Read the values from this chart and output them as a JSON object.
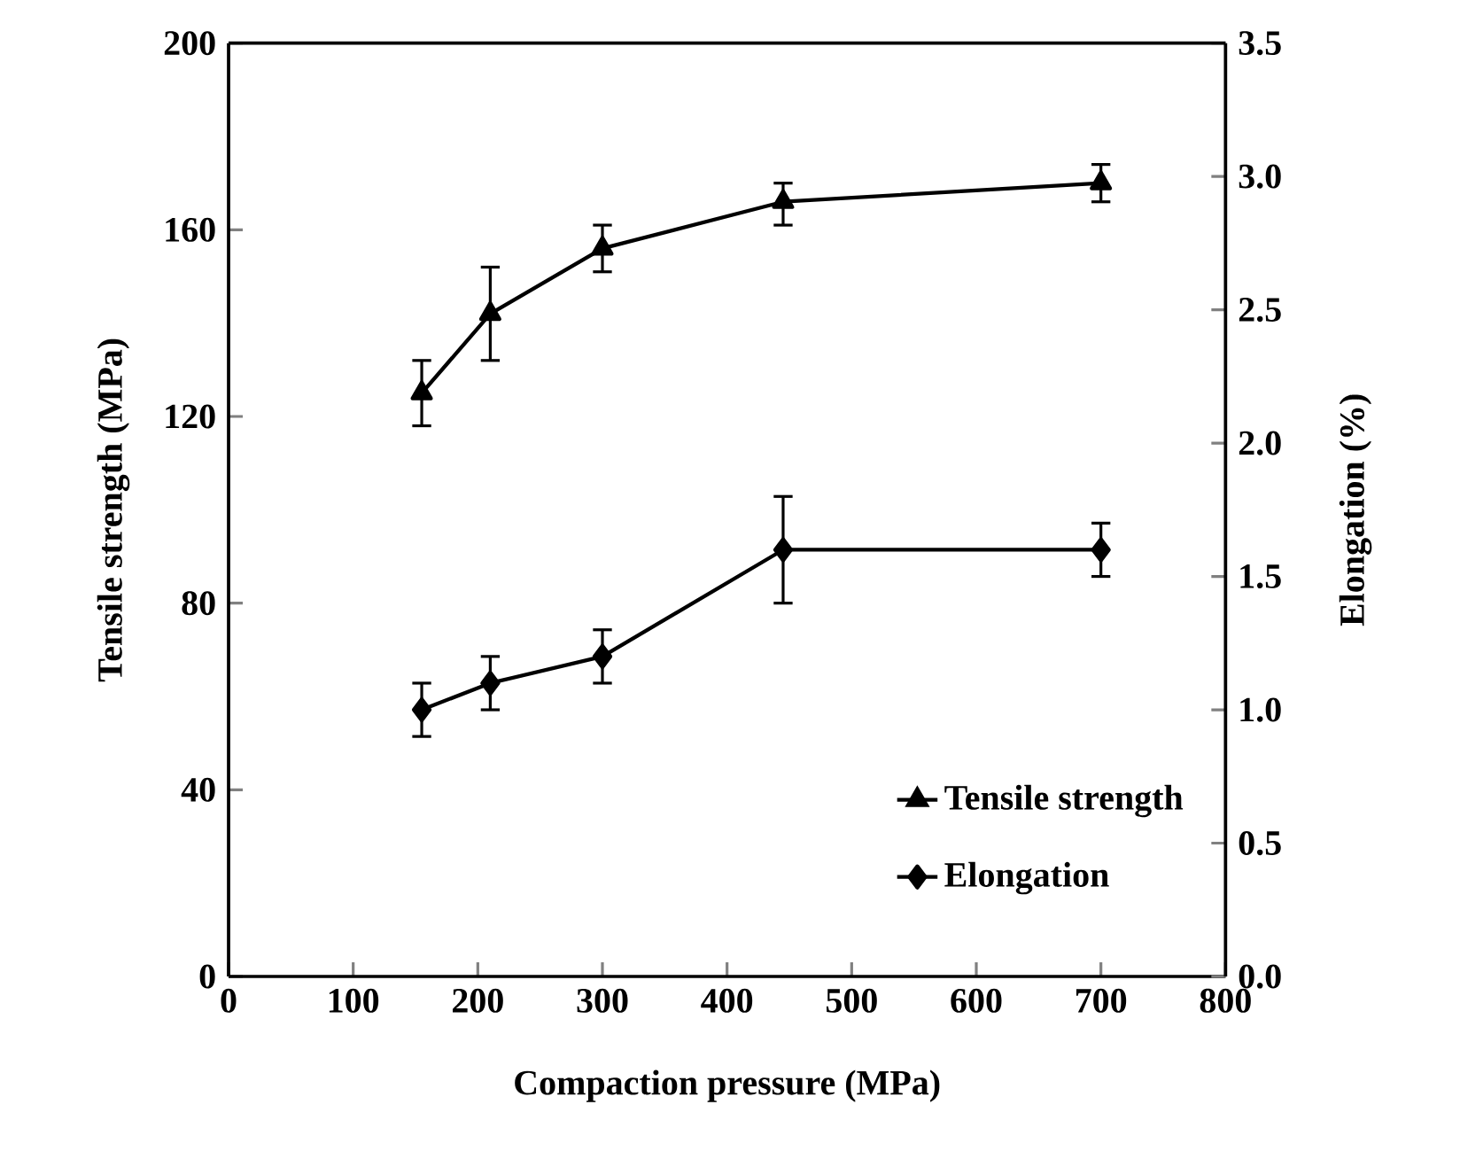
{
  "chart_data": {
    "type": "line",
    "xlabel": "Compaction pressure (MPa)",
    "ylabel": "Tensile strength (MPa)",
    "y2label": "Elongation (%)",
    "xlim": [
      0,
      800
    ],
    "xticks": [
      0,
      100,
      200,
      300,
      400,
      500,
      600,
      700,
      800
    ],
    "ylim": [
      0,
      200
    ],
    "yticks": [
      0,
      40,
      80,
      120,
      160,
      200
    ],
    "y2lim": [
      0,
      3.5
    ],
    "y2ticks": [
      {
        "value": 0,
        "label": "0.0"
      },
      {
        "value": 0.5,
        "label": "0.5"
      },
      {
        "value": 1,
        "label": "1.0"
      },
      {
        "value": 1.5,
        "label": "1.5"
      },
      {
        "value": 2,
        "label": "2.0"
      },
      {
        "value": 2.5,
        "label": "2.5"
      },
      {
        "value": 3,
        "label": "3.0"
      },
      {
        "value": 3.5,
        "label": "3.5"
      }
    ],
    "x": [
      155,
      210,
      300,
      445,
      700
    ],
    "series": [
      {
        "name": "Tensile strength",
        "color": "#000000",
        "marker": "triangle",
        "values": [
          125,
          142,
          156,
          166,
          170
        ],
        "errors": [
          [
            118,
            132
          ],
          [
            132,
            152
          ],
          [
            151,
            161
          ],
          [
            161,
            170
          ],
          [
            166,
            174
          ]
        ]
      },
      {
        "name": "Elongation",
        "color": "#000000",
        "marker": "diamond",
        "axis": "y2",
        "values": [
          1.0,
          1.1,
          1.2,
          1.6,
          1.6
        ],
        "errors": [
          [
            0.9,
            1.1
          ],
          [
            1.0,
            1.2
          ],
          [
            1.1,
            1.3
          ],
          [
            1.4,
            1.8
          ],
          [
            1.5,
            1.7
          ]
        ]
      }
    ],
    "legend": "bottom right",
    "grid": false,
    "line_style": "solid"
  }
}
